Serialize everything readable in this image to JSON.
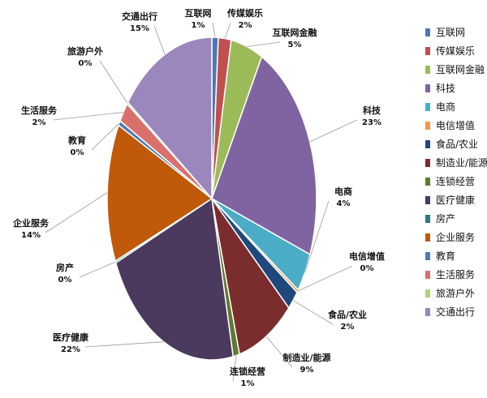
{
  "chart_data": {
    "type": "pie",
    "title": "",
    "legend_position": "right",
    "slices": [
      {
        "name": "互联网",
        "value": 1,
        "pct_label": "1%",
        "color": "#4a7ab5"
      },
      {
        "name": "传媒娱乐",
        "value": 2,
        "pct_label": "2%",
        "color": "#c0504d"
      },
      {
        "name": "互联网金融",
        "value": 5,
        "pct_label": "5%",
        "color": "#9bbb59"
      },
      {
        "name": "科技",
        "value": 23,
        "pct_label": "23%",
        "color": "#8064a2"
      },
      {
        "name": "电商",
        "value": 4,
        "pct_label": "4%",
        "color": "#4bacc6"
      },
      {
        "name": "电信增值",
        "value": 0.3,
        "pct_label": "0%",
        "color": "#f79646"
      },
      {
        "name": "食品/农业",
        "value": 2,
        "pct_label": "2%",
        "color": "#1f497d"
      },
      {
        "name": "制造业/能源",
        "value": 9,
        "pct_label": "9%",
        "color": "#7b2c2c"
      },
      {
        "name": "连锁经营",
        "value": 1,
        "pct_label": "1%",
        "color": "#5f7a2e"
      },
      {
        "name": "医疗健康",
        "value": 22,
        "pct_label": "22%",
        "color": "#4b3a5e"
      },
      {
        "name": "房产",
        "value": 0.2,
        "pct_label": "0%",
        "color": "#2b7a88"
      },
      {
        "name": "企业服务",
        "value": 14,
        "pct_label": "14%",
        "color": "#c0590a"
      },
      {
        "name": "教育",
        "value": 0.5,
        "pct_label": "0%",
        "color": "#4a7ab5"
      },
      {
        "name": "生活服务",
        "value": 2,
        "pct_label": "2%",
        "color": "#d9706b"
      },
      {
        "name": "旅游户外",
        "value": 0.2,
        "pct_label": "0%",
        "color": "#b3cf7a"
      },
      {
        "name": "交通出行",
        "value": 15,
        "pct_label": "15%",
        "color": "#9b86bd"
      }
    ]
  }
}
